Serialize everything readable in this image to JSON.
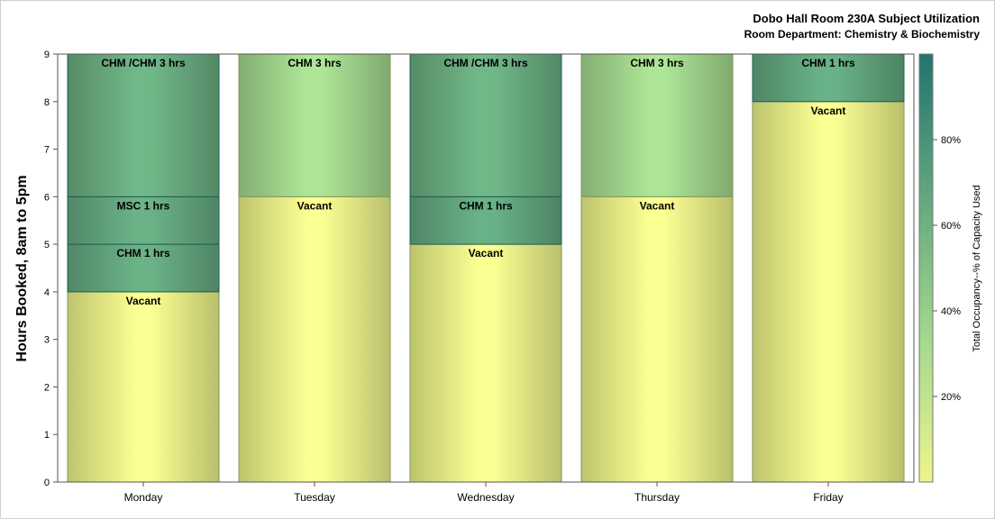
{
  "chart_data": {
    "type": "bar",
    "stacked": true,
    "title": "Dobo Hall Room 230A Subject Utilization",
    "subtitle": "Room Department:  Chemistry & Biochemistry",
    "ylabel": "Hours Booked, 8am to 5pm",
    "xlabel": "",
    "ylim": [
      0,
      9
    ],
    "yticks": [
      "0",
      "1",
      "2",
      "3",
      "4",
      "5",
      "6",
      "7",
      "8",
      "9"
    ],
    "categories": [
      "Monday",
      "Tuesday",
      "Wednesday",
      "Thursday",
      "Friday"
    ],
    "bars": [
      {
        "day": "Monday",
        "segments": [
          {
            "label": "Vacant",
            "hours": 4,
            "occupancy": 0
          },
          {
            "label": "CHM 1 hrs",
            "hours": 1,
            "occupancy": 0.65
          },
          {
            "label": "MSC 1 hrs",
            "hours": 1,
            "occupancy": 0.65
          },
          {
            "label": "CHM /CHM 3 hrs",
            "hours": 3,
            "occupancy": 0.62
          }
        ]
      },
      {
        "day": "Tuesday",
        "segments": [
          {
            "label": "Vacant",
            "hours": 6,
            "occupancy": 0
          },
          {
            "label": "CHM 3 hrs",
            "hours": 3,
            "occupancy": 0.33
          }
        ]
      },
      {
        "day": "Wednesday",
        "segments": [
          {
            "label": "Vacant",
            "hours": 5,
            "occupancy": 0
          },
          {
            "label": "CHM 1 hrs",
            "hours": 1,
            "occupancy": 0.66
          },
          {
            "label": "CHM /CHM 3 hrs",
            "hours": 3,
            "occupancy": 0.62
          }
        ]
      },
      {
        "day": "Thursday",
        "segments": [
          {
            "label": "Vacant",
            "hours": 6,
            "occupancy": 0
          },
          {
            "label": "CHM 3 hrs",
            "hours": 3,
            "occupancy": 0.33
          }
        ]
      },
      {
        "day": "Friday",
        "segments": [
          {
            "label": "Vacant",
            "hours": 8,
            "occupancy": 0
          },
          {
            "label": "CHM 1 hrs",
            "hours": 1,
            "occupancy": 0.66
          }
        ]
      }
    ],
    "colorbar": {
      "title": "Total Occupancy--% of Capacity Used",
      "range": [
        0,
        1
      ],
      "ticks": [
        {
          "value": 0.2,
          "label": "20%"
        },
        {
          "value": 0.4,
          "label": "40%"
        },
        {
          "value": 0.6,
          "label": "60%"
        },
        {
          "value": 0.8,
          "label": "80%"
        }
      ],
      "color_low": "#eef58a",
      "color_mid": "#a4d98e",
      "color_high": "#21756f"
    },
    "grid": false,
    "legend_position": "right"
  }
}
